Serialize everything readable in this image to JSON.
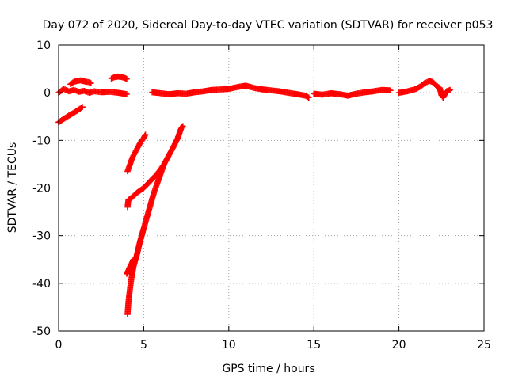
{
  "chart_data": {
    "type": "scatter",
    "title": "Day 072 of 2020, Sidereal Day-to-day VTEC variation (SDTVAR) for receiver p053",
    "xlabel": "GPS time / hours",
    "ylabel": "SDTVAR / TECUs",
    "xlim": [
      0,
      25
    ],
    "ylim": [
      -50,
      10
    ],
    "xticks": [
      0,
      5,
      10,
      15,
      20,
      25
    ],
    "yticks": [
      10,
      0,
      -10,
      -20,
      -30,
      -40,
      -50
    ],
    "xtick_labels": [
      "0",
      "5",
      "10",
      "15",
      "20",
      "25"
    ],
    "ytick_labels": [
      "10",
      "0",
      "-10",
      "-20",
      "-30",
      "-40",
      "-50"
    ],
    "grid": true,
    "marker": "plus",
    "color": "#ff0000",
    "series": [
      {
        "name": "trace-near-zero-1",
        "segments": [
          [
            [
              0.0,
              0.0
            ],
            [
              0.3,
              0.8
            ],
            [
              0.6,
              0.3
            ],
            [
              0.9,
              0.6
            ],
            [
              1.2,
              0.2
            ],
            [
              1.5,
              0.4
            ],
            [
              1.8,
              0.0
            ],
            [
              2.1,
              0.3
            ],
            [
              2.5,
              0.1
            ],
            [
              3.0,
              0.2
            ],
            [
              3.5,
              0.0
            ],
            [
              4.0,
              -0.3
            ]
          ]
        ]
      },
      {
        "name": "trace-hump-1",
        "segments": [
          [
            [
              0.7,
              1.8
            ],
            [
              0.9,
              2.3
            ],
            [
              1.1,
              2.5
            ],
            [
              1.3,
              2.6
            ],
            [
              1.5,
              2.4
            ],
            [
              1.8,
              2.2
            ],
            [
              1.9,
              2.0
            ]
          ]
        ]
      },
      {
        "name": "trace-hump-2",
        "segments": [
          [
            [
              3.1,
              3.0
            ],
            [
              3.3,
              3.3
            ],
            [
              3.5,
              3.4
            ],
            [
              3.7,
              3.3
            ],
            [
              3.9,
              3.1
            ],
            [
              4.0,
              2.9
            ]
          ]
        ]
      },
      {
        "name": "trace-descending-start",
        "segments": [
          [
            [
              0.0,
              -6.2
            ],
            [
              0.3,
              -5.5
            ],
            [
              0.6,
              -4.8
            ],
            [
              0.9,
              -4.2
            ],
            [
              1.2,
              -3.5
            ],
            [
              1.4,
              -3.0
            ]
          ]
        ]
      },
      {
        "name": "trace-steep-a",
        "segments": [
          [
            [
              4.05,
              -16.5
            ],
            [
              4.2,
              -15.0
            ],
            [
              4.35,
              -13.5
            ],
            [
              4.5,
              -12.5
            ],
            [
              4.65,
              -11.5
            ],
            [
              4.8,
              -10.5
            ],
            [
              5.0,
              -9.5
            ],
            [
              5.1,
              -8.8
            ]
          ]
        ]
      },
      {
        "name": "trace-steep-b",
        "segments": [
          [
            [
              4.05,
              -24.0
            ],
            [
              4.1,
              -22.5
            ],
            [
              4.3,
              -22.0
            ],
            [
              4.6,
              -21.0
            ],
            [
              5.0,
              -20.0
            ],
            [
              5.4,
              -18.5
            ],
            [
              5.8,
              -17.0
            ],
            [
              6.2,
              -15.0
            ],
            [
              6.5,
              -13.0
            ],
            [
              6.8,
              -11.0
            ],
            [
              7.0,
              -9.5
            ],
            [
              7.2,
              -7.5
            ],
            [
              7.3,
              -7.0
            ]
          ]
        ]
      },
      {
        "name": "trace-deep",
        "segments": [
          [
            [
              4.05,
              -46.5
            ],
            [
              4.1,
              -44.0
            ],
            [
              4.2,
              -41.0
            ],
            [
              4.3,
              -38.5
            ],
            [
              4.4,
              -36.5
            ],
            [
              4.6,
              -34.0
            ],
            [
              4.8,
              -31.0
            ],
            [
              5.0,
              -28.5
            ],
            [
              5.2,
              -26.0
            ],
            [
              5.4,
              -23.5
            ],
            [
              5.6,
              -21.0
            ],
            [
              5.8,
              -19.0
            ],
            [
              6.0,
              -17.0
            ],
            [
              6.2,
              -15.0
            ]
          ],
          [
            [
              4.0,
              -38.0
            ],
            [
              4.2,
              -36.5
            ],
            [
              4.4,
              -35.0
            ]
          ]
        ]
      },
      {
        "name": "trace-near-zero-2",
        "segments": [
          [
            [
              5.5,
              0.1
            ],
            [
              6.0,
              -0.1
            ],
            [
              6.5,
              -0.3
            ],
            [
              7.0,
              -0.1
            ],
            [
              7.5,
              -0.2
            ],
            [
              8.0,
              0.1
            ],
            [
              8.5,
              0.3
            ],
            [
              9.0,
              0.6
            ],
            [
              9.5,
              0.7
            ],
            [
              10.0,
              0.8
            ],
            [
              10.5,
              1.2
            ],
            [
              11.0,
              1.5
            ],
            [
              11.5,
              1.0
            ],
            [
              12.0,
              0.7
            ],
            [
              12.5,
              0.5
            ],
            [
              13.0,
              0.3
            ],
            [
              13.5,
              0.0
            ],
            [
              14.0,
              -0.3
            ],
            [
              14.5,
              -0.6
            ],
            [
              14.7,
              -1.0
            ]
          ],
          [
            [
              15.0,
              -0.2
            ],
            [
              15.5,
              -0.4
            ],
            [
              16.0,
              -0.1
            ],
            [
              16.5,
              -0.3
            ],
            [
              17.0,
              -0.6
            ],
            [
              17.5,
              -0.2
            ],
            [
              18.0,
              0.1
            ],
            [
              18.5,
              0.3
            ],
            [
              19.0,
              0.6
            ],
            [
              19.5,
              0.5
            ]
          ],
          [
            [
              20.0,
              0.0
            ],
            [
              20.5,
              0.3
            ],
            [
              21.0,
              0.8
            ],
            [
              21.3,
              1.4
            ],
            [
              21.5,
              2.0
            ],
            [
              21.8,
              2.5
            ],
            [
              22.0,
              2.2
            ],
            [
              22.2,
              1.5
            ],
            [
              22.4,
              1.0
            ],
            [
              22.5,
              -0.5
            ],
            [
              22.6,
              -1.0
            ],
            [
              22.8,
              0.3
            ],
            [
              23.0,
              0.6
            ]
          ]
        ]
      }
    ]
  }
}
